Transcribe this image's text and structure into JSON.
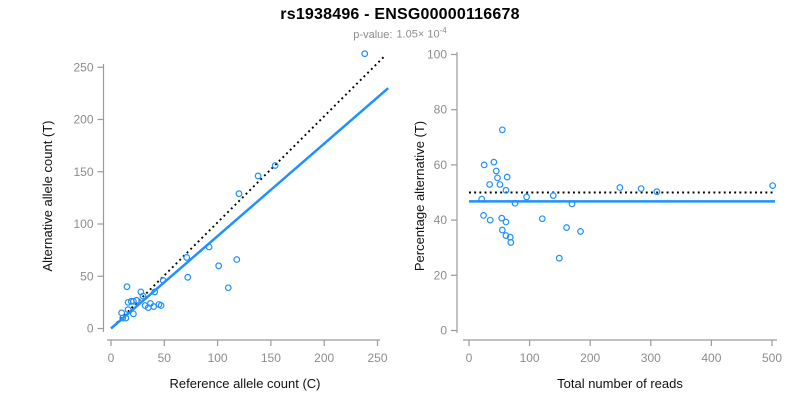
{
  "header": {
    "title": "rs1938496 - ENSG00000116678",
    "pvalue_label": "p-value:",
    "pvalue_mantissa": "1.05× 10",
    "pvalue_exponent": "-4"
  },
  "colors": {
    "point_blue": "#1E90FF",
    "fit_line_blue": "#1E90FF",
    "reference_line_black": "#000000",
    "axis_gray": "#9b9b9b",
    "tick_text_gray": "#8c8c8c",
    "title_black": "#000000"
  },
  "chart_data": [
    {
      "id": "allele-count-scatter",
      "type": "scatter",
      "xlabel": "Reference allele count (C)",
      "ylabel": "Alternative allele count (T)",
      "xlim": [
        0,
        260
      ],
      "ylim": [
        0,
        265
      ],
      "xticks": [
        0,
        50,
        100,
        150,
        200,
        250
      ],
      "yticks": [
        0,
        50,
        100,
        150,
        200,
        250
      ],
      "grid": false,
      "points": [
        [
          14,
          10
        ],
        [
          11,
          10
        ],
        [
          10,
          15
        ],
        [
          21,
          14
        ],
        [
          16,
          18
        ],
        [
          16,
          25
        ],
        [
          19,
          26
        ],
        [
          21,
          26
        ],
        [
          24,
          27
        ],
        [
          32,
          22
        ],
        [
          15,
          40
        ],
        [
          35,
          20
        ],
        [
          30,
          31
        ],
        [
          37,
          24
        ],
        [
          40,
          21
        ],
        [
          28,
          35
        ],
        [
          45,
          23
        ],
        [
          47,
          22
        ],
        [
          41,
          35
        ],
        [
          49,
          46
        ],
        [
          72,
          49
        ],
        [
          71,
          68
        ],
        [
          110,
          39
        ],
        [
          101,
          60
        ],
        [
          92,
          78
        ],
        [
          118,
          66
        ],
        [
          120,
          129
        ],
        [
          138,
          146
        ],
        [
          154,
          156
        ],
        [
          238,
          263
        ]
      ],
      "lines": [
        {
          "name": "identity-50pct-line",
          "style": "dotted",
          "color": "#000000",
          "from": [
            2,
            2
          ],
          "to": [
            256,
            260
          ]
        },
        {
          "name": "fitted-line",
          "style": "solid",
          "color": "#1E90FF",
          "from": [
            0,
            0
          ],
          "to": [
            260,
            230
          ]
        }
      ]
    },
    {
      "id": "percentage-scatter",
      "type": "scatter",
      "xlabel": "Total number of reads",
      "ylabel": "Percentage alternative (T)",
      "xlim": [
        0,
        510
      ],
      "ylim": [
        0,
        100
      ],
      "xticks": [
        0,
        100,
        200,
        300,
        400,
        500
      ],
      "yticks": [
        0,
        20,
        40,
        60,
        80,
        100
      ],
      "grid": false,
      "points": [
        [
          24,
          41.7
        ],
        [
          21,
          47.6
        ],
        [
          25,
          60.0
        ],
        [
          35,
          40.0
        ],
        [
          34,
          52.9
        ],
        [
          41,
          61.0
        ],
        [
          45,
          57.8
        ],
        [
          47,
          55.3
        ],
        [
          51,
          52.9
        ],
        [
          54,
          40.7
        ],
        [
          55,
          72.7
        ],
        [
          55,
          36.4
        ],
        [
          61,
          50.8
        ],
        [
          61,
          39.3
        ],
        [
          61,
          34.4
        ],
        [
          63,
          55.6
        ],
        [
          68,
          33.8
        ],
        [
          69,
          31.9
        ],
        [
          76,
          46.1
        ],
        [
          95,
          48.4
        ],
        [
          121,
          40.5
        ],
        [
          139,
          48.9
        ],
        [
          149,
          26.2
        ],
        [
          161,
          37.3
        ],
        [
          170,
          45.9
        ],
        [
          184,
          35.9
        ],
        [
          249,
          51.8
        ],
        [
          284,
          51.4
        ],
        [
          310,
          50.3
        ],
        [
          501,
          52.5
        ]
      ],
      "lines": [
        {
          "name": "expected-50pct-line",
          "style": "dotted",
          "color": "#000000",
          "from": [
            0,
            50
          ],
          "to": [
            505,
            50
          ]
        },
        {
          "name": "observed-fraction-line",
          "style": "solid",
          "color": "#1E90FF",
          "from": [
            0,
            46.8
          ],
          "to": [
            505,
            46.8
          ]
        }
      ]
    }
  ]
}
